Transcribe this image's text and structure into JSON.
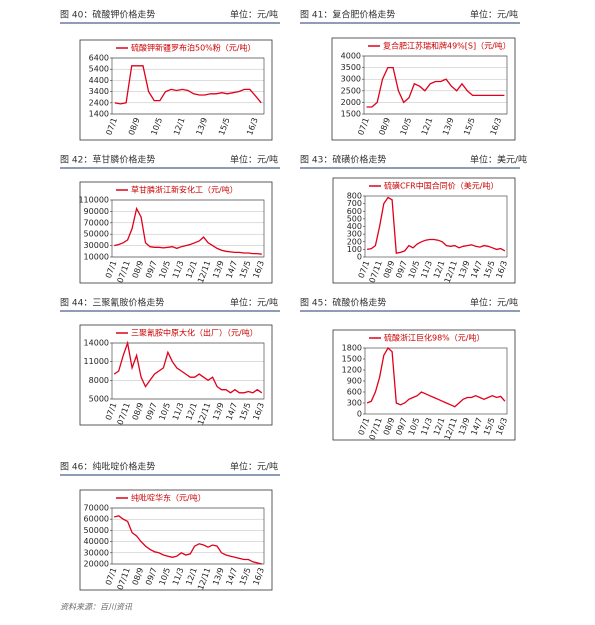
{
  "chart_data": [
    {
      "type": "line",
      "caption": "图 40：硫酸钾价格走势",
      "unit": "单位：元/吨",
      "ylim": [
        1400,
        6400
      ],
      "yticks": [
        1400,
        2400,
        3400,
        4400,
        5400,
        6400
      ],
      "grid": true,
      "categories": [
        "07/1",
        null,
        null,
        null,
        "08/9",
        null,
        null,
        null,
        "10/5",
        null,
        null,
        null,
        "12/1",
        null,
        null,
        null,
        "13/9",
        null,
        null,
        null,
        "15/5",
        null,
        null,
        null,
        null,
        "16/3",
        null
      ],
      "series": [
        {
          "name": "硫酸钾新疆罗布泊50%粉（元/吨）",
          "color": "#e0001b",
          "values": [
            2400,
            2300,
            2400,
            5700,
            5700,
            5700,
            3400,
            2600,
            2600,
            3400,
            3600,
            3500,
            3600,
            3500,
            3200,
            3100,
            3100,
            3200,
            3200,
            3300,
            3200,
            3300,
            3400,
            3600,
            3600,
            3000,
            2400
          ]
        }
      ]
    },
    {
      "type": "line",
      "caption": "图 41：复合肥价格走势",
      "unit": "单位：元/吨",
      "ylim": [
        1500,
        4000
      ],
      "yticks": [
        1500,
        2000,
        2500,
        3000,
        3500,
        4000
      ],
      "grid": true,
      "categories": [
        "07/1",
        null,
        null,
        null,
        "08/9",
        null,
        null,
        null,
        "10/5",
        null,
        null,
        null,
        "12/1",
        null,
        null,
        null,
        "13/9",
        null,
        null,
        null,
        "15/5",
        null,
        null,
        null,
        null,
        "16/3",
        null
      ],
      "series": [
        {
          "name": "复合肥江苏瑞和牌49%[S]（元/吨）",
          "color": "#e0001b",
          "values": [
            1800,
            1800,
            2000,
            3000,
            3500,
            3500,
            2500,
            2000,
            2200,
            2800,
            2700,
            2500,
            2800,
            2900,
            2900,
            3000,
            2700,
            2500,
            2800,
            2500,
            2300,
            2300,
            2300,
            2300,
            2300,
            2300,
            2300
          ]
        }
      ]
    },
    {
      "type": "line",
      "caption": "图 42：草甘膦价格走势",
      "unit": "单位：元/吨",
      "ylim": [
        10000,
        110000
      ],
      "yticks": [
        10000,
        30000,
        50000,
        70000,
        90000,
        110000
      ],
      "grid": true,
      "categories": [
        "07/1",
        null,
        null,
        "07/11",
        null,
        null,
        "08/9",
        null,
        null,
        "09/7",
        null,
        null,
        "10/5",
        null,
        null,
        "11/3",
        null,
        null,
        "12/1",
        null,
        null,
        "12/11",
        null,
        null,
        "13/9",
        null,
        null,
        "14/7",
        null,
        null,
        "15/5",
        null,
        null,
        "16/3"
      ],
      "series": [
        {
          "name": "草甘膦浙江新安化工（元/吨）",
          "color": "#e0001b",
          "values": [
            30000,
            32000,
            35000,
            40000,
            60000,
            95000,
            80000,
            35000,
            28000,
            27000,
            27000,
            26000,
            27000,
            28000,
            25000,
            28000,
            30000,
            32000,
            35000,
            38000,
            45000,
            35000,
            30000,
            25000,
            22000,
            20000,
            19000,
            18000,
            18000,
            17000,
            17000,
            16000,
            16000,
            15000
          ]
        }
      ]
    },
    {
      "type": "line",
      "caption": "图 43：硫磺价格走势",
      "unit": "单位：美元/吨",
      "ylim": [
        0,
        800
      ],
      "yticks": [
        0,
        100,
        200,
        300,
        400,
        500,
        600,
        700,
        800
      ],
      "grid": false,
      "categories": [
        "07/1",
        null,
        null,
        "07/11",
        null,
        null,
        "08/9",
        null,
        null,
        "09/7",
        null,
        null,
        "10/5",
        null,
        null,
        "11/3",
        null,
        null,
        "12/1",
        null,
        null,
        "12/11",
        null,
        null,
        "13/9",
        null,
        null,
        "14/7",
        null,
        null,
        "15/5",
        null,
        null,
        "16/3"
      ],
      "series": [
        {
          "name": "硫磺CFR中国合同价（美元/吨）",
          "color": "#e0001b",
          "values": [
            100,
            110,
            150,
            400,
            700,
            780,
            750,
            50,
            60,
            80,
            150,
            120,
            170,
            200,
            220,
            230,
            230,
            220,
            200,
            150,
            140,
            150,
            120,
            140,
            150,
            160,
            140,
            130,
            150,
            140,
            120,
            100,
            110,
            80
          ]
        }
      ]
    },
    {
      "type": "line",
      "caption": "图 44：三聚氰胺价格走势",
      "unit": "单位：元/吨",
      "ylim": [
        5000,
        14000
      ],
      "yticks": [
        5000,
        8000,
        11000,
        14000
      ],
      "grid": true,
      "categories": [
        "07/1",
        null,
        null,
        "07/11",
        null,
        null,
        "08/9",
        null,
        null,
        "09/7",
        null,
        null,
        "10/5",
        null,
        null,
        "11/3",
        null,
        null,
        "12/1",
        null,
        null,
        "12/11",
        null,
        null,
        "13/9",
        null,
        null,
        "14/7",
        null,
        null,
        "15/5",
        null,
        null,
        "16/3"
      ],
      "series": [
        {
          "name": "三聚氰胺中原大化（出厂）（元/吨）",
          "color": "#e0001b",
          "values": [
            9000,
            9500,
            12000,
            14000,
            10000,
            12000,
            8500,
            7000,
            8000,
            9000,
            9500,
            10000,
            12500,
            11000,
            10000,
            9500,
            9000,
            8500,
            8500,
            9000,
            8500,
            8000,
            8500,
            7000,
            6500,
            6500,
            6000,
            6500,
            6000,
            6000,
            6200,
            6000,
            6500,
            6000
          ]
        }
      ]
    },
    {
      "type": "line",
      "caption": "图 45：硫酸价格走势",
      "unit": "单位：元/吨",
      "ylim": [
        0,
        1800
      ],
      "yticks": [
        0,
        300,
        600,
        900,
        1200,
        1500,
        1800
      ],
      "grid": false,
      "categories": [
        "07/1",
        null,
        null,
        "07/11",
        null,
        null,
        "08/9",
        null,
        null,
        "09/7",
        null,
        null,
        "10/5",
        null,
        null,
        "11/3",
        null,
        null,
        "12/1",
        null,
        null,
        "12/11",
        null,
        null,
        "13/9",
        null,
        null,
        "14/7",
        null,
        null,
        "15/5",
        null,
        null,
        "16/3"
      ],
      "series": [
        {
          "name": "硫酸浙江巨化98%（元/吨）",
          "color": "#e0001b",
          "values": [
            300,
            350,
            600,
            1000,
            1600,
            1800,
            1700,
            300,
            250,
            300,
            400,
            450,
            500,
            600,
            550,
            500,
            450,
            400,
            350,
            300,
            250,
            200,
            300,
            400,
            450,
            450,
            500,
            450,
            400,
            450,
            500,
            450,
            480,
            350
          ]
        }
      ]
    },
    {
      "type": "line",
      "caption": "图 46：纯吡啶价格走势",
      "unit": "单位：元/吨",
      "ylim": [
        20000,
        70000
      ],
      "yticks": [
        20000,
        30000,
        40000,
        50000,
        60000,
        70000
      ],
      "grid": true,
      "categories": [
        "07/1",
        null,
        null,
        "07/11",
        null,
        null,
        "08/9",
        null,
        null,
        "09/7",
        null,
        null,
        "10/5",
        null,
        null,
        "11/3",
        null,
        null,
        "12/1",
        null,
        null,
        "12/11",
        null,
        null,
        "13/9",
        null,
        null,
        "14/7",
        null,
        null,
        "15/5",
        null,
        null,
        "16/3"
      ],
      "series": [
        {
          "name": "纯吡啶华东（元/吨）",
          "color": "#e0001b",
          "values": [
            62000,
            63000,
            60000,
            58000,
            48000,
            45000,
            40000,
            36000,
            33000,
            31000,
            30000,
            28000,
            27000,
            26000,
            27000,
            30000,
            28000,
            29000,
            36000,
            38000,
            37000,
            35000,
            37000,
            36000,
            30000,
            28000,
            27000,
            26000,
            25000,
            24000,
            24000,
            22000,
            21000,
            20000
          ]
        }
      ]
    }
  ],
  "source": "资料来源：百川资讯"
}
